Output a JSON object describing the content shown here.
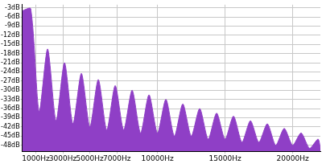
{
  "chart_data": {
    "type": "area",
    "color": "#8f3fc6",
    "grid": true,
    "x": [
      0,
      625,
      1250,
      1875,
      2500,
      3125,
      3750,
      4375,
      5000,
      5625,
      6250,
      6875,
      7500,
      8125,
      8750,
      9375,
      10000,
      10625,
      11250,
      11875,
      12500,
      13125,
      13750,
      14375,
      15000,
      15625,
      16250,
      16875,
      17500,
      18125,
      18750,
      19375,
      20000,
      20625,
      21250,
      21875,
      22050
    ],
    "values": [
      -4,
      -3.3,
      -37,
      -16.5,
      -40,
      -21,
      -41,
      -24.5,
      -42,
      -26.5,
      -43,
      -28.5,
      -43,
      -30,
      -44,
      -31.5,
      -44,
      -33,
      -45,
      -34.5,
      -45,
      -36,
      -46,
      -37.5,
      -46,
      -38.5,
      -47,
      -40,
      -47,
      -41,
      -48,
      -42.5,
      -48,
      -44,
      -49,
      -46,
      -49
    ],
    "xlim": [
      0,
      22050
    ],
    "xticks": [
      {
        "value": 1000,
        "label": "1000Hz"
      },
      {
        "value": 3000,
        "label": "3000Hz"
      },
      {
        "value": 5000,
        "label": "5000Hz"
      },
      {
        "value": 7000,
        "label": "7000Hz"
      },
      {
        "value": 10000,
        "label": "10000Hz"
      },
      {
        "value": 15000,
        "label": "15000Hz"
      },
      {
        "value": 20000,
        "label": "20000Hz"
      }
    ],
    "ylim": [
      -50,
      -2
    ],
    "yticks": [
      {
        "value": -3,
        "label": "-3dB"
      },
      {
        "value": -6,
        "label": "-6dB"
      },
      {
        "value": -9,
        "label": "-9dB"
      },
      {
        "value": -12,
        "label": "-12dB"
      },
      {
        "value": -15,
        "label": "-15dB"
      },
      {
        "value": -18,
        "label": "-18dB"
      },
      {
        "value": -21,
        "label": "-21dB"
      },
      {
        "value": -24,
        "label": "-24dB"
      },
      {
        "value": -27,
        "label": "-27dB"
      },
      {
        "value": -30,
        "label": "-30dB"
      },
      {
        "value": -33,
        "label": "-33dB"
      },
      {
        "value": -36,
        "label": "-36dB"
      },
      {
        "value": -39,
        "label": "-39dB"
      },
      {
        "value": -42,
        "label": "-42dB"
      },
      {
        "value": -45,
        "label": "-45dB"
      },
      {
        "value": -48,
        "label": "-48dB"
      }
    ]
  }
}
